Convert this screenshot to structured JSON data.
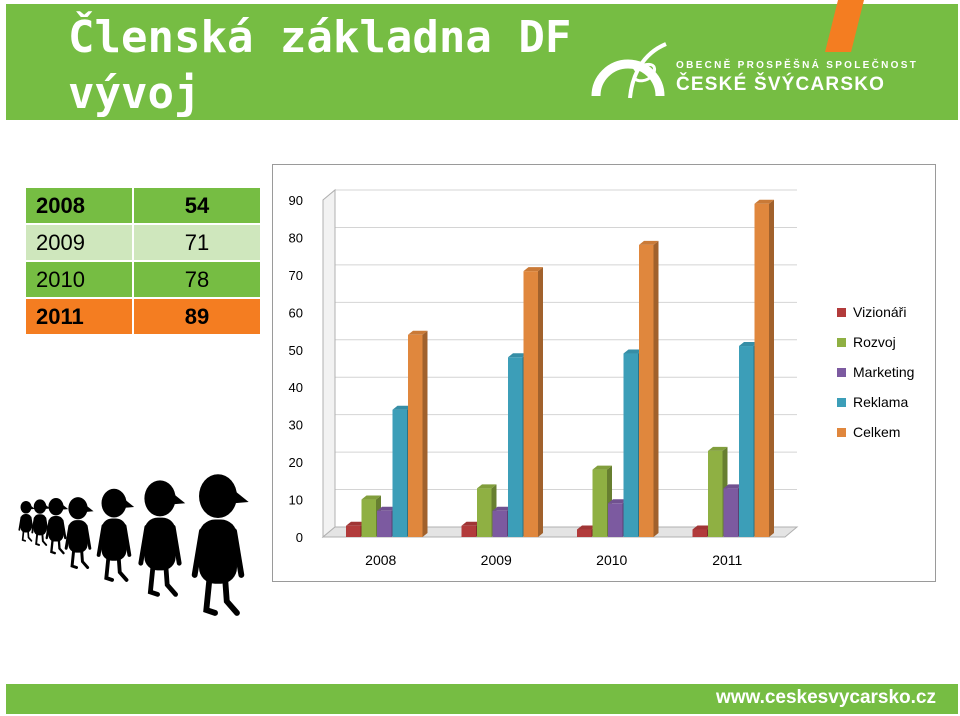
{
  "header": {
    "title": "Členská základna DF\nvývoj",
    "org_subtitle": "OBECNĚ PROSPĚŠNÁ SPOLEČNOST",
    "org_name": "ČESKÉ ŠVÝCARSKO"
  },
  "summary_table": [
    {
      "year": "2008",
      "count": "54"
    },
    {
      "year": "2009",
      "count": "71"
    },
    {
      "year": "2010",
      "count": "78"
    },
    {
      "year": "2011",
      "count": "89"
    }
  ],
  "colors": {
    "green": "#76bd43",
    "light_green": "#cfe7bd",
    "orange": "#f47d21"
  },
  "chart_data": {
    "type": "bar",
    "title": "",
    "xlabel": "",
    "ylabel": "",
    "categories": [
      "2008",
      "2009",
      "2010",
      "2011"
    ],
    "ylim": [
      0,
      90
    ],
    "yticks": [
      "0",
      "10",
      "20",
      "30",
      "40",
      "50",
      "60",
      "70",
      "80",
      "90"
    ],
    "grid": true,
    "legend_position": "right",
    "series": [
      {
        "name": "Vizionáři",
        "color": "#b23b3b",
        "values": [
          3,
          3,
          2,
          2
        ]
      },
      {
        "name": "Rozvoj",
        "color": "#8fb043",
        "values": [
          10,
          13,
          18,
          23
        ]
      },
      {
        "name": "Marketing",
        "color": "#7c5aa0",
        "values": [
          7,
          7,
          9,
          13
        ]
      },
      {
        "name": "Reklama",
        "color": "#3c9eb8",
        "values": [
          34,
          48,
          49,
          51
        ]
      },
      {
        "name": "Celkem",
        "color": "#e0873d",
        "values": [
          54,
          71,
          78,
          89
        ]
      }
    ]
  },
  "footer": {
    "website": "www.ceskesvycarsko.cz"
  }
}
